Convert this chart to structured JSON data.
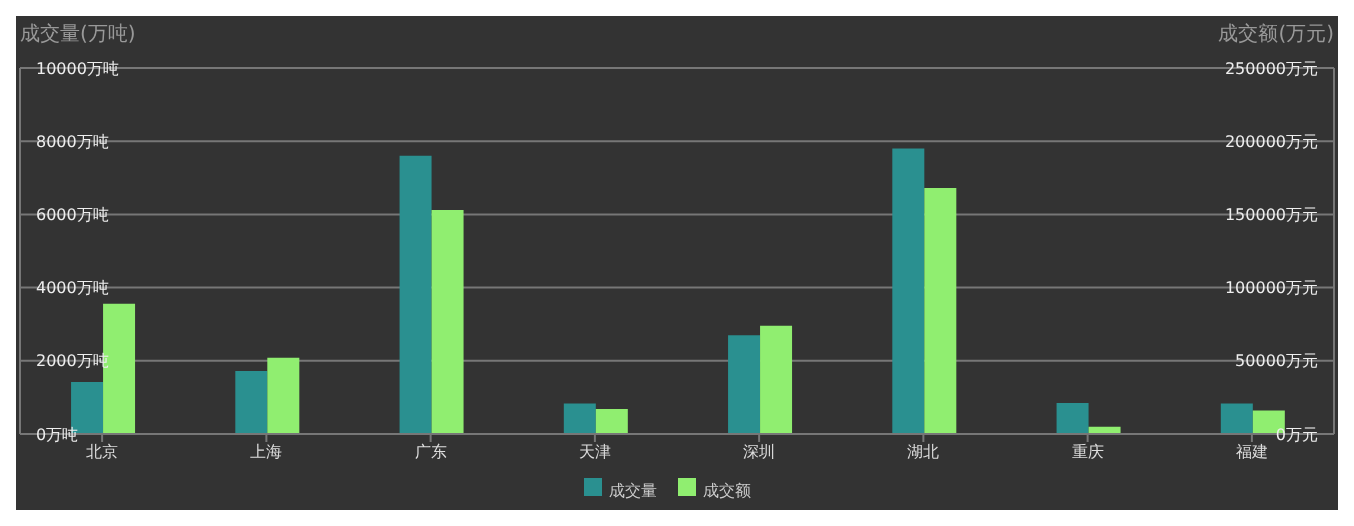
{
  "chart_data": {
    "type": "bar",
    "ylabel": "成交量(万吨)",
    "y2label": "成交额(万元)",
    "categories": [
      "北京",
      "上海",
      "广东",
      "天津",
      "深圳",
      "湖北",
      "重庆",
      "福建"
    ],
    "series": [
      {
        "name": "成交量",
        "color": "#2a9090",
        "values": [
          1420,
          1720,
          7600,
          830,
          2700,
          7800,
          850,
          830
        ]
      },
      {
        "name": "成交额",
        "color": "#90ee70",
        "axis": "y2",
        "values": [
          89000,
          52000,
          153000,
          17000,
          74000,
          168000,
          5000,
          16000
        ]
      }
    ],
    "ylim": [
      0,
      10000
    ],
    "yticks": [
      {
        "value": 0,
        "label": "0万吨"
      },
      {
        "value": 2000,
        "label": "2000万吨"
      },
      {
        "value": 4000,
        "label": "4000万吨"
      },
      {
        "value": 6000,
        "label": "6000万吨"
      },
      {
        "value": 8000,
        "label": "8000万吨"
      },
      {
        "value": 10000,
        "label": "10000万吨"
      }
    ],
    "y2lim": [
      0,
      250000
    ],
    "y2ticks": [
      {
        "value": 0,
        "label": "0万元"
      },
      {
        "value": 50000,
        "label": "50000万元"
      },
      {
        "value": 100000,
        "label": "100000万元"
      },
      {
        "value": 150000,
        "label": "150000万元"
      },
      {
        "value": 200000,
        "label": "200000万元"
      },
      {
        "value": 250000,
        "label": "250000万元"
      }
    ],
    "grid": "y",
    "legend": "bottom"
  }
}
